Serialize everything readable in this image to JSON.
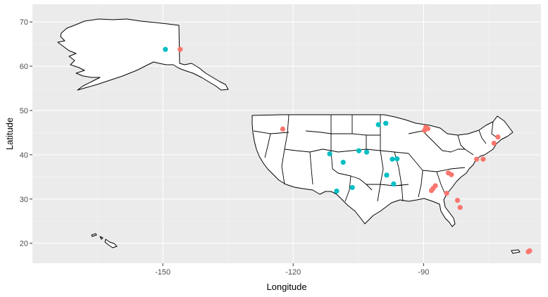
{
  "chart_data": {
    "type": "scatter",
    "title": "",
    "xlabel": "Longitude",
    "ylabel": "Latitude",
    "xlim": [
      -180,
      -63
    ],
    "ylim": [
      15.5,
      74
    ],
    "x_ticks": [
      -150,
      -120,
      -90
    ],
    "y_ticks": [
      20,
      30,
      40,
      50,
      60,
      70
    ],
    "grid": true,
    "legend": "none",
    "colors": {
      "series_a": "#F8766D",
      "series_b": "#00BFC4",
      "panel": "#EBEBEB"
    },
    "series": [
      {
        "color": "#F8766D",
        "points": [
          {
            "x": -146,
            "y": 63.8
          },
          {
            "x": -122.4,
            "y": 45.8
          },
          {
            "x": -89.5,
            "y": 46.2
          },
          {
            "x": -89.0,
            "y": 45.9
          },
          {
            "x": -89.8,
            "y": 45.5
          },
          {
            "x": -89.3,
            "y": 46.0
          },
          {
            "x": -84.3,
            "y": 35.9
          },
          {
            "x": -83.6,
            "y": 35.5
          },
          {
            "x": -87.3,
            "y": 33.0
          },
          {
            "x": -87.8,
            "y": 32.4
          },
          {
            "x": -88.2,
            "y": 31.9
          },
          {
            "x": -84.7,
            "y": 31.3
          },
          {
            "x": -82.2,
            "y": 29.7
          },
          {
            "x": -81.6,
            "y": 28.1
          },
          {
            "x": -77.8,
            "y": 39.0
          },
          {
            "x": -76.3,
            "y": 39.0
          },
          {
            "x": -72.9,
            "y": 44.0
          },
          {
            "x": -73.8,
            "y": 42.6
          },
          {
            "x": -65.9,
            "y": 18.1
          },
          {
            "x": -65.6,
            "y": 18.3
          }
        ]
      },
      {
        "color": "#00BFC4",
        "points": [
          {
            "x": -149.4,
            "y": 63.8
          },
          {
            "x": -100.4,
            "y": 46.8
          },
          {
            "x": -98.7,
            "y": 47.1
          },
          {
            "x": -111.6,
            "y": 40.2
          },
          {
            "x": -108.5,
            "y": 38.3
          },
          {
            "x": -104.9,
            "y": 40.9
          },
          {
            "x": -103.1,
            "y": 40.6
          },
          {
            "x": -97.2,
            "y": 39.0
          },
          {
            "x": -96.1,
            "y": 39.1
          },
          {
            "x": -98.5,
            "y": 35.4
          },
          {
            "x": -96.9,
            "y": 33.4
          },
          {
            "x": -106.4,
            "y": 32.6
          },
          {
            "x": -110.0,
            "y": 31.8
          }
        ]
      }
    ]
  }
}
